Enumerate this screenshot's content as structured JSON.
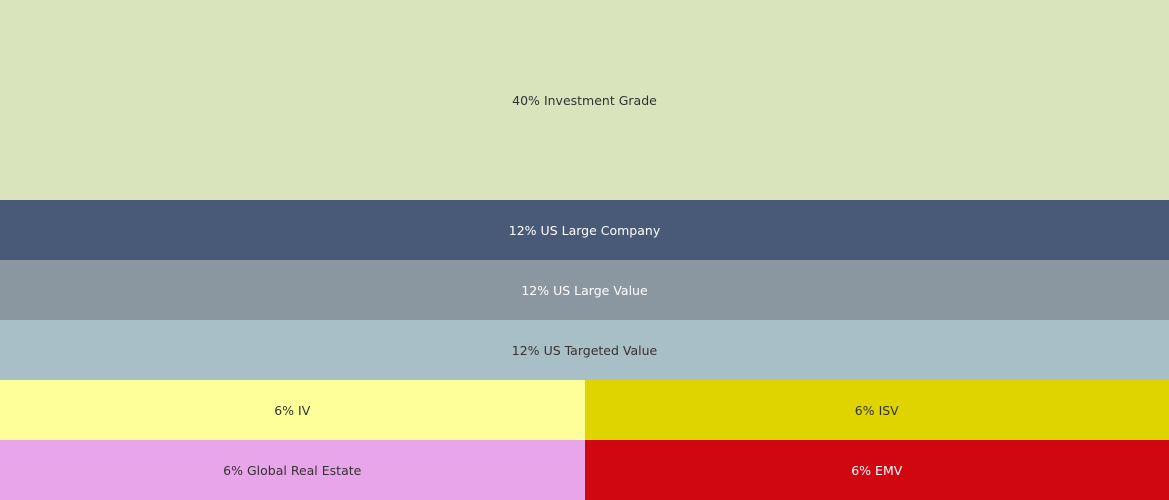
{
  "chart_data": {
    "type": "treemap",
    "categories": [
      "Investment Grade",
      "US Large Company",
      "US Large Value",
      "US Targeted Value",
      "IV",
      "ISV",
      "Global Real Estate",
      "EMV"
    ],
    "values": [
      40,
      12,
      12,
      12,
      6,
      6,
      6,
      6
    ],
    "value_labels": [
      "40%",
      "12%",
      "12%",
      "12%",
      "6%",
      "6%",
      "6%",
      "6%"
    ],
    "colors": [
      "#d9e4bd",
      "#485a77",
      "#8a96a0",
      "#a9bfc7",
      "#ffff99",
      "#dfd300",
      "#e8a5ea",
      "#d00711"
    ]
  }
}
